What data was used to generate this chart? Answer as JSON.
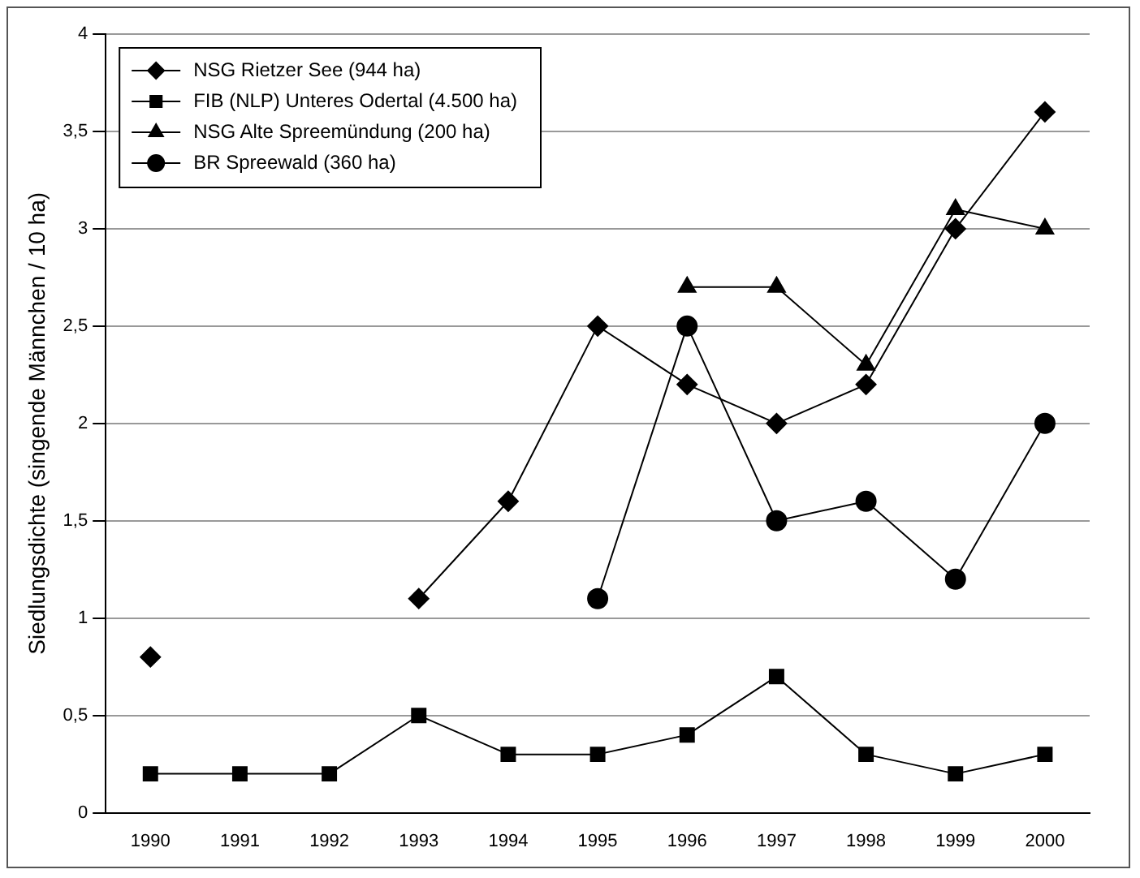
{
  "chart_data": {
    "type": "line",
    "ylabel": "Siedlungsdichte (singende Männchen / 10 ha)",
    "categories": [
      "1990",
      "1991",
      "1992",
      "1993",
      "1994",
      "1995",
      "1996",
      "1997",
      "1998",
      "1999",
      "2000"
    ],
    "ylim": [
      0,
      4
    ],
    "yticks": [
      {
        "value": 0,
        "label": "0"
      },
      {
        "value": 0.5,
        "label": "0,5"
      },
      {
        "value": 1,
        "label": "1"
      },
      {
        "value": 1.5,
        "label": "1,5"
      },
      {
        "value": 2,
        "label": "2"
      },
      {
        "value": 2.5,
        "label": "2,5"
      },
      {
        "value": 3,
        "label": "3"
      },
      {
        "value": 3.5,
        "label": "3,5"
      },
      {
        "value": 4,
        "label": "4"
      }
    ],
    "grid": "y",
    "legend": "top left",
    "line_style": "solid",
    "series": [
      {
        "name": "NSG Rietzer See (944 ha)",
        "color": "#000000",
        "marker": "diamond",
        "values": [
          0.8,
          null,
          null,
          1.1,
          1.6,
          2.5,
          2.2,
          2.0,
          2.2,
          3.0,
          3.6
        ]
      },
      {
        "name": "FIB (NLP) Unteres Odertal (4.500 ha)",
        "color": "#000000",
        "marker": "square",
        "values": [
          0.2,
          0.2,
          0.2,
          0.5,
          0.3,
          0.3,
          0.4,
          0.7,
          0.3,
          0.2,
          0.3
        ]
      },
      {
        "name": "NSG Alte Spreemündung (200 ha)",
        "color": "#000000",
        "marker": "triangle",
        "values": [
          null,
          null,
          null,
          null,
          null,
          null,
          2.7,
          2.7,
          2.3,
          3.1,
          3.0
        ]
      },
      {
        "name": "BR Spreewald (360 ha)",
        "color": "#000000",
        "marker": "circle",
        "values": [
          null,
          null,
          null,
          null,
          null,
          1.1,
          2.5,
          1.5,
          1.6,
          1.2,
          2.0
        ]
      }
    ]
  }
}
